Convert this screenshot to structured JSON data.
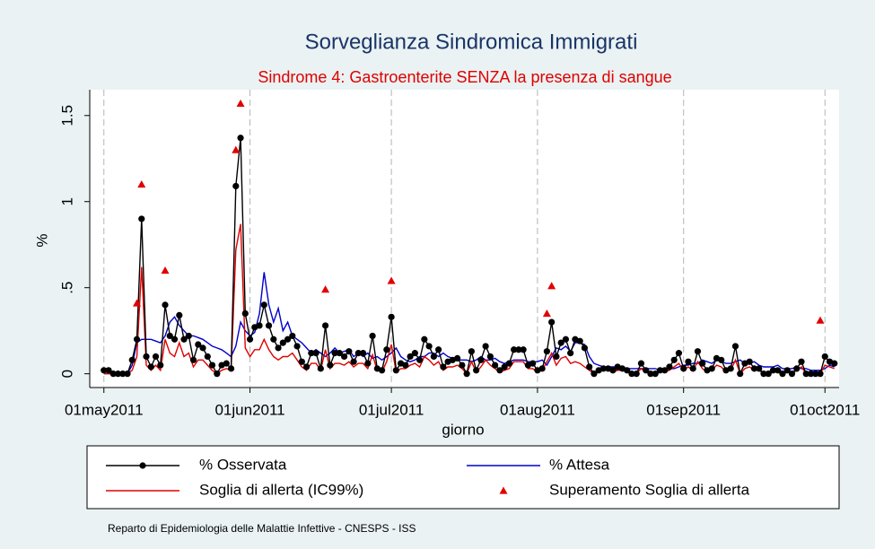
{
  "chart_data": {
    "type": "line",
    "title": "Sorveglianza Sindromica Immigrati",
    "subtitle": "Sindrome 4: Gastroenterite SENZA la presenza di sangue",
    "xlabel": "giorno",
    "ylabel": "%",
    "note": "Reparto di Epidemiologia delle Malattie Infettive - CNESPS - ISS",
    "legend": "bottom",
    "grid": "x",
    "xlim": [
      "2011-04-28",
      "2011-10-04"
    ],
    "xticks": [
      {
        "value": "2011-05-01",
        "label": "01may2011"
      },
      {
        "value": "2011-06-01",
        "label": "01jun2011"
      },
      {
        "value": "2011-07-01",
        "label": "01jul2011"
      },
      {
        "value": "2011-08-01",
        "label": "01aug2011"
      },
      {
        "value": "2011-09-01",
        "label": "01sep2011"
      },
      {
        "value": "2011-10-01",
        "label": "01oct2011"
      }
    ],
    "ylim": [
      -0.08,
      1.65
    ],
    "yticks": [
      0,
      {
        "value": 0.5,
        "label": ".5"
      },
      1,
      1.5
    ],
    "x": [
      "2011-05-01",
      "2011-05-02",
      "2011-05-03",
      "2011-05-04",
      "2011-05-05",
      "2011-05-06",
      "2011-05-07",
      "2011-05-08",
      "2011-05-09",
      "2011-05-10",
      "2011-05-11",
      "2011-05-12",
      "2011-05-13",
      "2011-05-14",
      "2011-05-15",
      "2011-05-16",
      "2011-05-17",
      "2011-05-18",
      "2011-05-19",
      "2011-05-20",
      "2011-05-21",
      "2011-05-22",
      "2011-05-23",
      "2011-05-24",
      "2011-05-25",
      "2011-05-26",
      "2011-05-27",
      "2011-05-28",
      "2011-05-29",
      "2011-05-30",
      "2011-05-31",
      "2011-06-01",
      "2011-06-02",
      "2011-06-03",
      "2011-06-04",
      "2011-06-05",
      "2011-06-06",
      "2011-06-07",
      "2011-06-08",
      "2011-06-09",
      "2011-06-10",
      "2011-06-11",
      "2011-06-12",
      "2011-06-13",
      "2011-06-14",
      "2011-06-15",
      "2011-06-16",
      "2011-06-17",
      "2011-06-18",
      "2011-06-19",
      "2011-06-20",
      "2011-06-21",
      "2011-06-22",
      "2011-06-23",
      "2011-06-24",
      "2011-06-25",
      "2011-06-26",
      "2011-06-27",
      "2011-06-28",
      "2011-06-29",
      "2011-06-30",
      "2011-07-01",
      "2011-07-02",
      "2011-07-03",
      "2011-07-04",
      "2011-07-05",
      "2011-07-06",
      "2011-07-07",
      "2011-07-08",
      "2011-07-09",
      "2011-07-10",
      "2011-07-11",
      "2011-07-12",
      "2011-07-13",
      "2011-07-14",
      "2011-07-15",
      "2011-07-16",
      "2011-07-17",
      "2011-07-18",
      "2011-07-19",
      "2011-07-20",
      "2011-07-21",
      "2011-07-22",
      "2011-07-23",
      "2011-07-24",
      "2011-07-25",
      "2011-07-26",
      "2011-07-27",
      "2011-07-28",
      "2011-07-29",
      "2011-07-30",
      "2011-07-31",
      "2011-08-01",
      "2011-08-02",
      "2011-08-03",
      "2011-08-04",
      "2011-08-05",
      "2011-08-06",
      "2011-08-07",
      "2011-08-08",
      "2011-08-09",
      "2011-08-10",
      "2011-08-11",
      "2011-08-12",
      "2011-08-13",
      "2011-08-14",
      "2011-08-15",
      "2011-08-16",
      "2011-08-17",
      "2011-08-18",
      "2011-08-19",
      "2011-08-20",
      "2011-08-21",
      "2011-08-22",
      "2011-08-23",
      "2011-08-24",
      "2011-08-25",
      "2011-08-26",
      "2011-08-27",
      "2011-08-28",
      "2011-08-29",
      "2011-08-30",
      "2011-08-31",
      "2011-09-01",
      "2011-09-02",
      "2011-09-03",
      "2011-09-04",
      "2011-09-05",
      "2011-09-06",
      "2011-09-07",
      "2011-09-08",
      "2011-09-09",
      "2011-09-10",
      "2011-09-11",
      "2011-09-12",
      "2011-09-13",
      "2011-09-14",
      "2011-09-15",
      "2011-09-16",
      "2011-09-17",
      "2011-09-18",
      "2011-09-19",
      "2011-09-20",
      "2011-09-21",
      "2011-09-22",
      "2011-09-23",
      "2011-09-24",
      "2011-09-25",
      "2011-09-26",
      "2011-09-27",
      "2011-09-28",
      "2011-09-29",
      "2011-09-30",
      "2011-10-01",
      "2011-10-02",
      "2011-10-03"
    ],
    "series": [
      {
        "name": "% Osservata",
        "color": "#000000",
        "marker": "circle",
        "line": true,
        "values": [
          0.02,
          0.02,
          0.0,
          0.0,
          0.0,
          0.0,
          0.08,
          0.2,
          0.9,
          0.1,
          0.04,
          0.1,
          0.05,
          0.4,
          0.22,
          0.2,
          0.34,
          0.2,
          0.22,
          0.08,
          0.17,
          0.15,
          0.1,
          0.05,
          0.0,
          0.05,
          0.06,
          0.03,
          1.09,
          1.37,
          0.35,
          0.2,
          0.27,
          0.28,
          0.4,
          0.28,
          0.2,
          0.15,
          0.18,
          0.2,
          0.22,
          0.16,
          0.07,
          0.04,
          0.12,
          0.12,
          0.03,
          0.28,
          0.05,
          0.12,
          0.12,
          0.1,
          0.13,
          0.07,
          0.12,
          0.12,
          0.06,
          0.22,
          0.03,
          0.02,
          0.14,
          0.33,
          0.02,
          0.06,
          0.05,
          0.1,
          0.12,
          0.08,
          0.2,
          0.16,
          0.1,
          0.14,
          0.04,
          0.07,
          0.08,
          0.09,
          0.05,
          0.0,
          0.13,
          0.02,
          0.08,
          0.16,
          0.1,
          0.05,
          0.02,
          0.04,
          0.06,
          0.14,
          0.14,
          0.14,
          0.05,
          0.06,
          0.02,
          0.03,
          0.13,
          0.3,
          0.1,
          0.18,
          0.2,
          0.12,
          0.2,
          0.19,
          0.15,
          0.04,
          0.0,
          0.02,
          0.03,
          0.03,
          0.02,
          0.04,
          0.03,
          0.02,
          0.0,
          0.0,
          0.06,
          0.02,
          0.0,
          0.0,
          0.02,
          0.02,
          0.04,
          0.08,
          0.12,
          0.03,
          0.07,
          0.03,
          0.13,
          0.06,
          0.02,
          0.03,
          0.09,
          0.08,
          0.02,
          0.03,
          0.16,
          0.0,
          0.06,
          0.07,
          0.03,
          0.03,
          0.0,
          0.0,
          0.02,
          0.02,
          0.0,
          0.02,
          0.0,
          0.03,
          0.07,
          0.0,
          0.0,
          0.0,
          0.0,
          0.1,
          0.07,
          0.06
        ]
      },
      {
        "name": "% Attesa",
        "color": "#0000cc",
        "marker": "none",
        "line": true,
        "values": [
          0,
          0,
          0,
          0,
          0,
          0,
          0.05,
          0.18,
          0.2,
          0.2,
          0.2,
          0.19,
          0.18,
          0.22,
          0.3,
          0.33,
          0.28,
          0.25,
          0.22,
          0.22,
          0.21,
          0.2,
          0.18,
          0.16,
          0.15,
          0.14,
          0.12,
          0.1,
          0.16,
          0.3,
          0.25,
          0.22,
          0.24,
          0.35,
          0.59,
          0.4,
          0.3,
          0.38,
          0.25,
          0.3,
          0.22,
          0.2,
          0.18,
          0.15,
          0.12,
          0.14,
          0.12,
          0.1,
          0.12,
          0.15,
          0.12,
          0.13,
          0.14,
          0.1,
          0.12,
          0.1,
          0.12,
          0.09,
          0.1,
          0.08,
          0.1,
          0.12,
          0.15,
          0.1,
          0.08,
          0.07,
          0.08,
          0.1,
          0.1,
          0.12,
          0.12,
          0.1,
          0.12,
          0.1,
          0.09,
          0.08,
          0.08,
          0.08,
          0.07,
          0.08,
          0.1,
          0.08,
          0.08,
          0.09,
          0.07,
          0.06,
          0.07,
          0.08,
          0.08,
          0.08,
          0.07,
          0.07,
          0.07,
          0.08,
          0.05,
          0.1,
          0.15,
          0.14,
          0.16,
          0.13,
          0.18,
          0.18,
          0.17,
          0.1,
          0.06,
          0.05,
          0.04,
          0.04,
          0.04,
          0.04,
          0.04,
          0.03,
          0.03,
          0.03,
          0.03,
          0.03,
          0.03,
          0.03,
          0.02,
          0.02,
          0.03,
          0.03,
          0.04,
          0.05,
          0.05,
          0.06,
          0.06,
          0.08,
          0.07,
          0.06,
          0.08,
          0.07,
          0.06,
          0.06,
          0.07,
          0.08,
          0.06,
          0.06,
          0.07,
          0.05,
          0.04,
          0.04,
          0.04,
          0.05,
          0.03,
          0.03,
          0.03,
          0.04,
          0.03,
          0.03,
          0.02,
          0.02,
          0.02,
          0.03,
          0.05,
          0.04
        ]
      },
      {
        "name": "Soglia di allerta (IC99%)",
        "color": "#e00000",
        "marker": "none",
        "line": true,
        "values": [
          0,
          0,
          0,
          0,
          0,
          0,
          0.02,
          0.1,
          0.62,
          0.05,
          0.02,
          0.05,
          0.02,
          0.2,
          0.12,
          0.1,
          0.18,
          0.1,
          0.12,
          0.04,
          0.08,
          0.08,
          0.05,
          0.02,
          0.0,
          0.02,
          0.03,
          0.02,
          0.72,
          0.87,
          0.15,
          0.1,
          0.14,
          0.14,
          0.2,
          0.14,
          0.1,
          0.08,
          0.1,
          0.1,
          0.12,
          0.08,
          0.04,
          0.02,
          0.06,
          0.06,
          0.02,
          0.14,
          0.03,
          0.06,
          0.06,
          0.05,
          0.07,
          0.04,
          0.06,
          0.06,
          0.03,
          0.11,
          0.02,
          0.01,
          0.07,
          0.17,
          0.01,
          0.03,
          0.03,
          0.05,
          0.06,
          0.04,
          0.1,
          0.08,
          0.05,
          0.07,
          0.02,
          0.04,
          0.04,
          0.05,
          0.03,
          0.0,
          0.07,
          0.01,
          0.04,
          0.08,
          0.05,
          0.03,
          0.01,
          0.02,
          0.03,
          0.07,
          0.07,
          0.07,
          0.03,
          0.03,
          0.01,
          0.02,
          0.07,
          0.12,
          0.05,
          0.09,
          0.1,
          0.06,
          0.07,
          0.06,
          0.04,
          0.02,
          0.0,
          0.01,
          0.02,
          0.02,
          0.01,
          0.02,
          0.02,
          0.01,
          0.0,
          0.0,
          0.03,
          0.01,
          0.0,
          0.0,
          0.01,
          0.01,
          0.02,
          0.04,
          0.06,
          0.02,
          0.04,
          0.02,
          0.07,
          0.03,
          0.01,
          0.02,
          0.05,
          0.04,
          0.01,
          0.02,
          0.08,
          0.0,
          0.03,
          0.04,
          0.02,
          0.02,
          0.0,
          0.0,
          0.01,
          0.01,
          0.0,
          0.01,
          0.0,
          0.02,
          0.04,
          0.0,
          0.0,
          0.0,
          0.0,
          0.05,
          0.04,
          0.03
        ]
      },
      {
        "name": "Superamento Soglia di allerta",
        "color": "#e00000",
        "marker": "triangle",
        "line": false,
        "x": [
          "2011-05-08",
          "2011-05-09",
          "2011-05-14",
          "2011-05-29",
          "2011-05-30",
          "2011-06-17",
          "2011-07-01",
          "2011-08-03",
          "2011-08-04",
          "2011-09-30"
        ],
        "values": [
          0.41,
          1.1,
          0.6,
          1.3,
          1.57,
          0.49,
          0.54,
          0.35,
          0.51,
          0.31
        ]
      }
    ]
  }
}
